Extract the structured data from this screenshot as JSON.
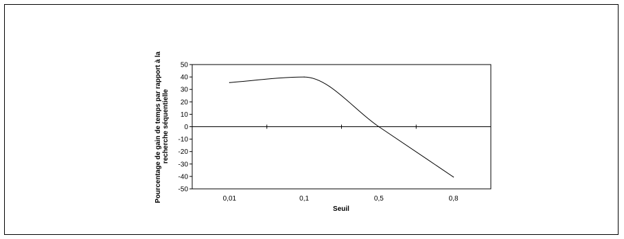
{
  "chart_data": {
    "type": "line",
    "title": "",
    "xlabel": "Seuil",
    "ylabel": [
      "Pourcentage de gain de temps par rapport à la",
      "recherche séquentielle"
    ],
    "categories": [
      "0,01",
      "0,1",
      "0,5",
      "0,8"
    ],
    "ylim": [
      -50,
      50
    ],
    "ytick_step": 10,
    "ytick_labels": [
      "50",
      "40",
      "30",
      "20",
      "10",
      "0",
      "-10",
      "-20",
      "-30",
      "-40",
      "-50"
    ],
    "series": [
      {
        "values": [
          35.5,
          40,
          0,
          -40.5
        ]
      }
    ],
    "grid": false,
    "legend": "none",
    "line_color": "#000000"
  }
}
